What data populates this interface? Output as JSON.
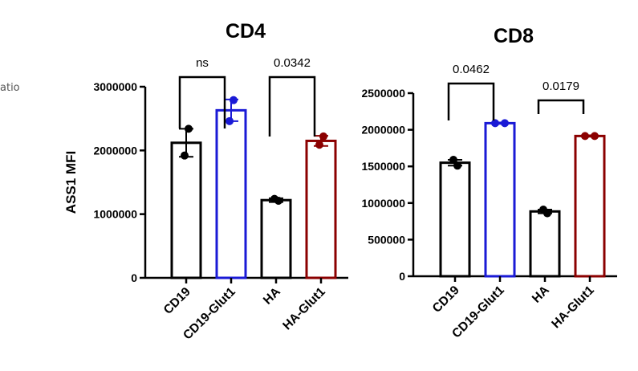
{
  "side_text": "atio",
  "chart_data": [
    {
      "type": "bar",
      "title": "CD4",
      "ylabel": "ASS1 MFI",
      "ylim": [
        0,
        3000000
      ],
      "yticks": [
        "0",
        "1000000",
        "2000000",
        "3000000"
      ],
      "categories": [
        "CD19",
        "CD19-Glut1",
        "HA",
        "HA-Glut1"
      ],
      "colors": [
        "#000000",
        "#1a1ad6",
        "#000000",
        "#8b0000"
      ],
      "values": [
        2120000,
        2630000,
        1220000,
        2150000
      ],
      "error": [
        220000,
        170000,
        30000,
        80000
      ],
      "points": [
        [
          2340000,
          1920000
        ],
        [
          2790000,
          2460000
        ],
        [
          1210000,
          1240000
        ],
        [
          2220000,
          2090000
        ]
      ],
      "comparisons": [
        {
          "from": 0,
          "to": 1,
          "label": "ns"
        },
        {
          "from": 2,
          "to": 3,
          "label": "0.0342"
        }
      ]
    },
    {
      "type": "bar",
      "title": "CD8",
      "ylabel": "",
      "ylim": [
        0,
        2500000
      ],
      "yticks": [
        "0",
        "500000",
        "1000000",
        "1500000",
        "2000000",
        "2500000"
      ],
      "categories": [
        "CD19",
        "CD19-Glut1",
        "HA",
        "HA-Glut1"
      ],
      "colors": [
        "#000000",
        "#1a1ad6",
        "#000000",
        "#8b0000"
      ],
      "values": [
        1550000,
        2090000,
        885000,
        1915000
      ],
      "error": [
        40000,
        10000,
        25000,
        10000
      ],
      "points": [
        [
          1510000,
          1590000
        ],
        [
          2090000,
          2090000
        ],
        [
          860000,
          910000
        ],
        [
          1915000,
          1915000
        ]
      ],
      "comparisons": [
        {
          "from": 0,
          "to": 1,
          "label": "0.0462"
        },
        {
          "from": 2,
          "to": 3,
          "label": "0.0179"
        }
      ]
    }
  ]
}
